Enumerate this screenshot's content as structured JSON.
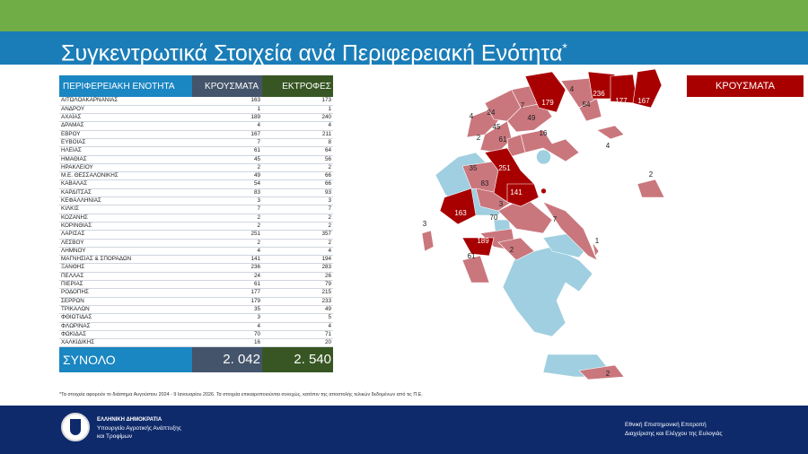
{
  "title": "Συγκεντρωτικά Στοιχεία ανά Περιφερειακή Ενότητα",
  "title_mark": "*",
  "table": {
    "headers": [
      "ΠΕΡΙΦΕΡΕΙΑΚΗ ΕΝΟΤΗΤΑ",
      "ΚΡΟΥΣΜΑΤΑ",
      "ΕΚΤΡΟΦΕΣ"
    ],
    "rows": [
      [
        "ΑΙΤΩΛΟΑΚΑΡΝΑΝΙΑΣ",
        "163",
        "173"
      ],
      [
        "ΑΝΔΡΟΥ",
        "1",
        "1"
      ],
      [
        "ΑΧΑΪΑΣ",
        "189",
        "240"
      ],
      [
        "ΔΡΑΜΑΣ",
        "4",
        "4"
      ],
      [
        "ΕΒΡΟΥ",
        "167",
        "211"
      ],
      [
        "ΕΥΒΟΙΑΣ",
        "7",
        "8"
      ],
      [
        "ΗΛΕΙΑΣ",
        "61",
        "64"
      ],
      [
        "ΗΜΑΘΙΑΣ",
        "45",
        "56"
      ],
      [
        "ΗΡΑΚΛΕΙΟΥ",
        "2",
        "2"
      ],
      [
        "Μ.Ε. ΘΕΣΣΑΛΟΝΙΚΗΣ",
        "49",
        "66"
      ],
      [
        "ΚΑΒΑΛΑΣ",
        "54",
        "66"
      ],
      [
        "ΚΑΡΔΙΤΣΑΣ",
        "83",
        "93"
      ],
      [
        "ΚΕΦΑΛΛΗΝΙΑΣ",
        "3",
        "3"
      ],
      [
        "ΚΙΛΚΙΣ",
        "7",
        "7"
      ],
      [
        "ΚΟΖΑΝΗΣ",
        "2",
        "2"
      ],
      [
        "ΚΟΡΙΝΘΙΑΣ",
        "2",
        "2"
      ],
      [
        "ΛΑΡΙΣΑΣ",
        "251",
        "357"
      ],
      [
        "ΛΕΣΒΟΥ",
        "2",
        "2"
      ],
      [
        "ΛΗΜΝΟΥ",
        "4",
        "4"
      ],
      [
        "ΜΑΓΝΗΣΙΑΣ & ΣΠΟΡΑΔΩΝ",
        "141",
        "194"
      ],
      [
        "ΞΑΝΘΗΣ",
        "236",
        "283"
      ],
      [
        "ΠΕΛΛΑΣ",
        "24",
        "26"
      ],
      [
        "ΠΙΕΡΙΑΣ",
        "61",
        "79"
      ],
      [
        "ΡΟΔΟΠΗΣ",
        "177",
        "215"
      ],
      [
        "ΣΕΡΡΩΝ",
        "179",
        "233"
      ],
      [
        "ΤΡΙΚΑΛΩΝ",
        "35",
        "49"
      ],
      [
        "ΦΘΙΩΤΙΔΑΣ",
        "3",
        "5"
      ],
      [
        "ΦΛΩΡΙΝΑΣ",
        "4",
        "4"
      ],
      [
        "ΦΩΚΙΔΑΣ",
        "70",
        "71"
      ],
      [
        "ΧΑΛΚΙΔΙΚΗΣ",
        "16",
        "20"
      ]
    ],
    "total": {
      "label": "ΣΥΝΟΛΟ",
      "cases": "2. 042",
      "farms": "2. 540"
    }
  },
  "note": "*Τα στοιχεία αφορούν το διάστημα Αυγούστου 2024 - 9 Ιανουαρίου 2026. Τα στοιχεία επικαιροποιούνται συνεχώς, κατόπιν της αποστολής τελικών δεδομένων από τις Π.Ε.",
  "legend": {
    "label": "ΚΡΟΥΣΜΑΤΑ",
    "color_high": "#a80000",
    "color_low": "#c9777d",
    "color_none": "#9fcfe0"
  },
  "map_labels": {
    "serres": "179",
    "drama": "4",
    "xanthi": "236",
    "rodopi": "177",
    "evros": "167",
    "kavala": "54",
    "pella": "24",
    "kilkis": "7",
    "florina": "4",
    "thessaloniki": "49",
    "imathia": "45",
    "kozani": "2",
    "pieria": "61",
    "chalkidiki": "16",
    "limnos": "4",
    "lesvos": "2",
    "larisa": "251",
    "trikala": "35",
    "karditsa": "83",
    "magnesia": "141",
    "fthiotida": "3",
    "aitoloakarnania": "163",
    "fokida": "70",
    "evia": "7",
    "kefallinia": "3",
    "achaia": "189",
    "korinthia": "2",
    "andros": "1",
    "ilia": "61",
    "irakleio": "2"
  },
  "footer": {
    "gov": "ΕΛΛΗΝΙΚΗ ΔΗΜΟΚΡΑΤΙΑ",
    "ministry_line1": "Υπουργείο Αγροτικής Ανάπτυξης",
    "ministry_line2": "και Τροφίμων",
    "committee_line1": "Εθνική Επιστημονική Επιτροπή",
    "committee_line2": "Διαχείρισης και Ελέγχου της Ευλογιάς"
  }
}
